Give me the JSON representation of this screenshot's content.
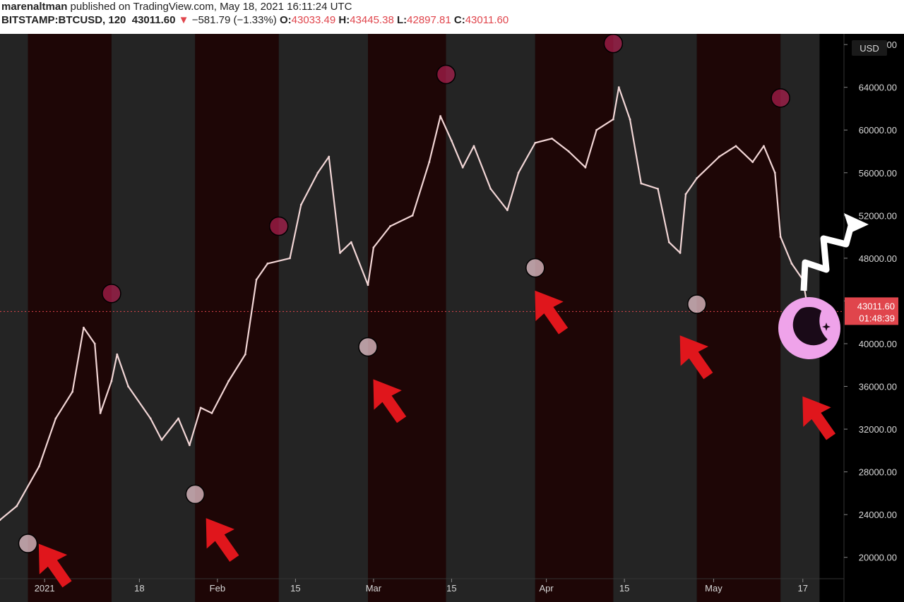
{
  "header": {
    "author": "marenaltman",
    "published": "published on TradingView.com, May 18, 2021 16:11:24 UTC",
    "symbol": "BITSTAMP:BTCUSD, 120",
    "last": "43011.60",
    "change_arrow": "▼",
    "change": "−581.79 (−1.33%)",
    "o_label": "O:",
    "o_value": "43033.49",
    "h_label": "H:",
    "h_value": "43445.38",
    "l_label": "L:",
    "l_value": "42897.81",
    "c_label": "C:",
    "c_value": "43011.60"
  },
  "chart_data": {
    "type": "line",
    "currency_label": "USD",
    "last_price_label": "43011.60",
    "countdown_label": "01:48:39",
    "last_price": 43011.6,
    "ylim": [
      18000,
      69000
    ],
    "y_ticks": [
      20000,
      24000,
      28000,
      32000,
      36000,
      40000,
      44000,
      48000,
      52000,
      56000,
      60000,
      64000,
      68000
    ],
    "y_tick_labels": [
      "20000.00",
      "24000.00",
      "28000.00",
      "32000.00",
      "36000.00",
      "40000.00",
      "44000.00",
      "48000.00",
      "52000.00",
      "56000.00",
      "60000.00",
      "64000.00",
      "68000.00"
    ],
    "xlim": [
      "2020-12-24",
      "2021-05-24"
    ],
    "x_ticks": [
      "2021-01-01",
      "2021-01-18",
      "2021-02-01",
      "2021-02-15",
      "2021-03-01",
      "2021-03-15",
      "2021-04-01",
      "2021-04-15",
      "2021-05-01",
      "2021-05-17"
    ],
    "x_tick_labels": [
      "2021",
      "18",
      "Feb",
      "15",
      "Mar",
      "15",
      "Apr",
      "15",
      "May",
      "17"
    ],
    "series": [
      {
        "x": [
          "2020-12-24",
          "2020-12-27",
          "2020-12-31",
          "2021-01-03",
          "2021-01-06",
          "2021-01-08",
          "2021-01-10",
          "2021-01-11",
          "2021-01-13",
          "2021-01-14",
          "2021-01-16",
          "2021-01-20",
          "2021-01-22",
          "2021-01-25",
          "2021-01-27",
          "2021-01-29",
          "2021-01-31",
          "2021-02-03",
          "2021-02-06",
          "2021-02-08",
          "2021-02-10",
          "2021-02-14",
          "2021-02-16",
          "2021-02-19",
          "2021-02-21",
          "2021-02-23",
          "2021-02-25",
          "2021-02-28",
          "2021-03-01",
          "2021-03-04",
          "2021-03-08",
          "2021-03-11",
          "2021-03-13",
          "2021-03-15",
          "2021-03-17",
          "2021-03-19",
          "2021-03-22",
          "2021-03-25",
          "2021-03-27",
          "2021-03-30",
          "2021-04-02",
          "2021-04-05",
          "2021-04-08",
          "2021-04-10",
          "2021-04-13",
          "2021-04-14",
          "2021-04-16",
          "2021-04-18",
          "2021-04-21",
          "2021-04-23",
          "2021-04-25",
          "2021-04-26",
          "2021-04-28",
          "2021-05-02",
          "2021-05-05",
          "2021-05-08",
          "2021-05-10",
          "2021-05-12",
          "2021-05-13",
          "2021-05-15",
          "2021-05-17",
          "2021-05-18"
        ],
        "values": [
          23500,
          24800,
          28500,
          33000,
          35500,
          41500,
          40000,
          33500,
          36500,
          39000,
          36000,
          33000,
          31000,
          33000,
          30500,
          34000,
          33500,
          36500,
          39000,
          46000,
          47500,
          48000,
          53000,
          56000,
          57500,
          48500,
          49500,
          45500,
          49000,
          51000,
          52000,
          57000,
          61300,
          59000,
          56500,
          58500,
          54500,
          52500,
          56000,
          58800,
          59200,
          58000,
          56500,
          60000,
          61000,
          64000,
          61000,
          55000,
          54500,
          49500,
          48500,
          54000,
          55500,
          57500,
          58500,
          57000,
          58500,
          56000,
          50000,
          47500,
          46000,
          43011.6
        ]
      }
    ],
    "shaded_bands": [
      {
        "start": "2020-12-29",
        "end": "2021-01-13",
        "tone": "red"
      },
      {
        "start": "2021-01-13",
        "end": "2021-01-28",
        "tone": "gray"
      },
      {
        "start": "2021-01-28",
        "end": "2021-02-12",
        "tone": "red"
      },
      {
        "start": "2021-02-12",
        "end": "2021-02-28",
        "tone": "gray"
      },
      {
        "start": "2021-02-28",
        "end": "2021-03-14",
        "tone": "red"
      },
      {
        "start": "2021-03-14",
        "end": "2021-03-30",
        "tone": "gray"
      },
      {
        "start": "2021-03-30",
        "end": "2021-04-13",
        "tone": "red"
      },
      {
        "start": "2021-04-13",
        "end": "2021-04-28",
        "tone": "gray"
      },
      {
        "start": "2021-04-28",
        "end": "2021-05-13",
        "tone": "red"
      },
      {
        "start": "2021-05-13",
        "end": "2021-05-20",
        "tone": "gray"
      }
    ],
    "moon_markers": [
      {
        "date": "2020-12-29",
        "price": 21300,
        "phase": "new"
      },
      {
        "date": "2021-01-13",
        "price": 44700,
        "phase": "full"
      },
      {
        "date": "2021-01-28",
        "price": 25900,
        "phase": "new"
      },
      {
        "date": "2021-02-12",
        "price": 51000,
        "phase": "full"
      },
      {
        "date": "2021-02-28",
        "price": 39700,
        "phase": "new"
      },
      {
        "date": "2021-03-14",
        "price": 65200,
        "phase": "full"
      },
      {
        "date": "2021-03-30",
        "price": 47100,
        "phase": "new"
      },
      {
        "date": "2021-04-13",
        "price": 68100,
        "phase": "full"
      },
      {
        "date": "2021-04-28",
        "price": 43700,
        "phase": "new"
      },
      {
        "date": "2021-05-13",
        "price": 63000,
        "phase": "full"
      }
    ],
    "annotation_arrows": [
      {
        "date": "2021-01-03",
        "price": 19000
      },
      {
        "date": "2021-02-02",
        "price": 21400
      },
      {
        "date": "2021-03-04",
        "price": 34400
      },
      {
        "date": "2021-04-02",
        "price": 42700
      },
      {
        "date": "2021-04-28",
        "price": 38500
      },
      {
        "date": "2021-05-20",
        "price": 32800
      }
    ],
    "colors": {
      "background": "#000000",
      "band_gray": "#242424",
      "band_red": "#1e0606",
      "price_line": "#f2d6d6",
      "arrow": "#e0161c",
      "moon_new": "#e8c4cc",
      "moon_full": "#b02050",
      "crescent": "#efa3ea",
      "label_bg": "#e0454c",
      "up_arrow": "#ffffff"
    }
  }
}
